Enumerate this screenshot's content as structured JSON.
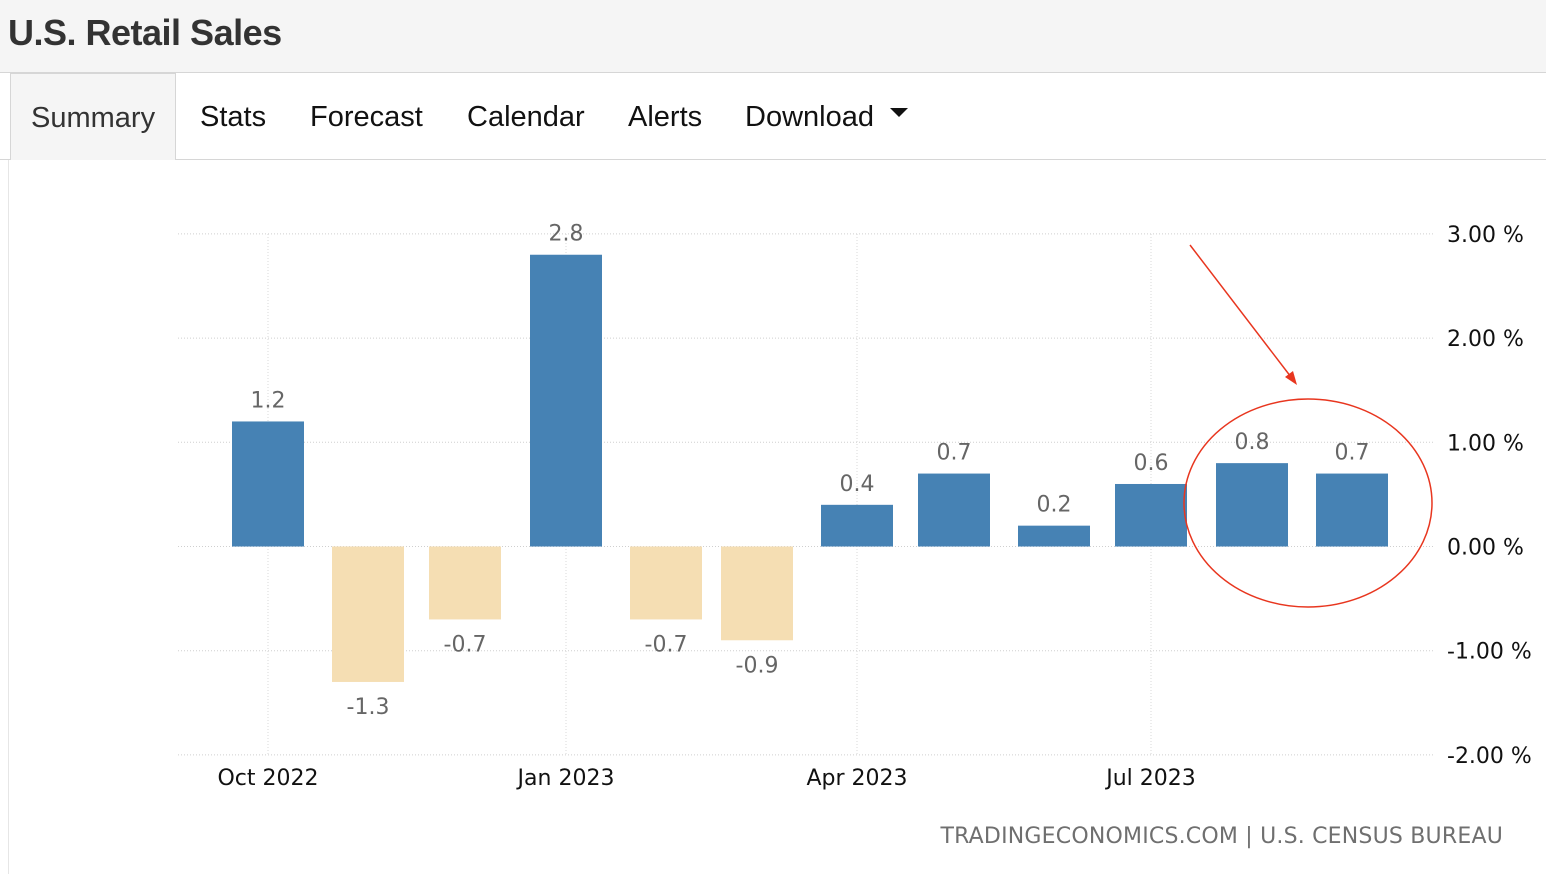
{
  "page": {
    "title": "U.S. Retail Sales"
  },
  "tabs": [
    {
      "label": "Summary",
      "active": true
    },
    {
      "label": "Stats",
      "active": false
    },
    {
      "label": "Forecast",
      "active": false
    },
    {
      "label": "Calendar",
      "active": false
    },
    {
      "label": "Alerts",
      "active": false
    },
    {
      "label": "Download",
      "active": false,
      "dropdown": true
    }
  ],
  "source_text": "TRADINGECONOMICS.COM | U.S. CENSUS BUREAU",
  "colors": {
    "positive_bar": "#4682b4",
    "negative_bar": "#f5deb3",
    "annotation": "#e8361f"
  },
  "chart_data": {
    "type": "bar",
    "title": "",
    "xlabel": "",
    "ylabel": "",
    "ylim": [
      -2,
      3
    ],
    "yticks": [
      3,
      2,
      1,
      0,
      -1,
      -2
    ],
    "ytick_labels": [
      "3.00 %",
      "2.00 %",
      "1.00 %",
      "0.00 %",
      "-1.00 %",
      "-2.00 %"
    ],
    "x_tick_labels": [
      "Oct 2022",
      "Jan 2023",
      "Apr 2023",
      "Jul 2023"
    ],
    "categories": [
      "2022-10",
      "2022-11",
      "2022-12",
      "2023-01",
      "2023-02",
      "2023-03",
      "2023-04",
      "2023-05",
      "2023-06",
      "2023-07",
      "2023-08",
      "2023-09"
    ],
    "values": [
      1.2,
      -1.3,
      -0.7,
      2.8,
      -0.7,
      -0.9,
      0.4,
      0.7,
      0.2,
      0.6,
      0.8,
      0.7
    ],
    "value_labels": [
      "1.2",
      "-1.3",
      "-0.7",
      "2.8",
      "-0.7",
      "-0.9",
      "0.4",
      "0.7",
      "0.2",
      "0.6",
      "0.8",
      "0.7"
    ],
    "grid": true,
    "annotation": {
      "type": "ellipse-with-arrow",
      "highlights": [
        "2023-08",
        "2023-09"
      ]
    }
  }
}
